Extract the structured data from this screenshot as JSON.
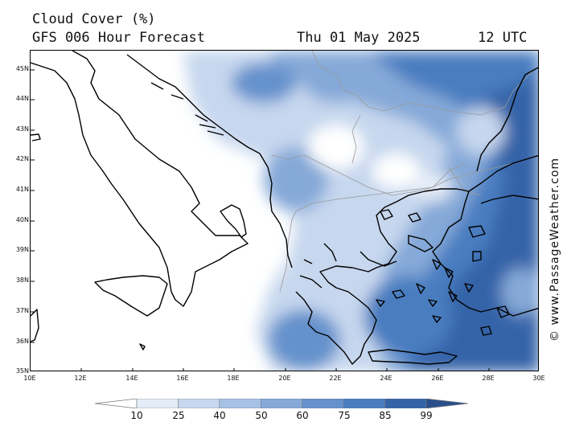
{
  "header": {
    "title": "Cloud Cover (%)",
    "subtitle": "GFS 006 Hour Forecast",
    "date": "Thu 01 May 2025",
    "time": "12 UTC"
  },
  "map": {
    "latitude_labels": [
      "45N",
      "44N",
      "43N",
      "42N",
      "41N",
      "40N",
      "39N",
      "38N",
      "37N",
      "36N",
      "35N"
    ],
    "longitude_labels": [
      "10E",
      "12E",
      "14E",
      "16E",
      "18E",
      "20E",
      "22E",
      "24E",
      "26E",
      "28E",
      "30E"
    ],
    "colors": {
      "coast": "#000000",
      "border": "#9a9a9a"
    }
  },
  "credit": "© www.PassageWeather.com",
  "legend": {
    "labels": [
      "10",
      "25",
      "40",
      "50",
      "60",
      "75",
      "85",
      "99"
    ],
    "colors": [
      "#ffffff",
      "#e4ecf7",
      "#c6d7ee",
      "#a5c1e4",
      "#85a9d8",
      "#6592cc",
      "#4a7dc0",
      "#3464a8",
      "#2a4f8c"
    ]
  }
}
